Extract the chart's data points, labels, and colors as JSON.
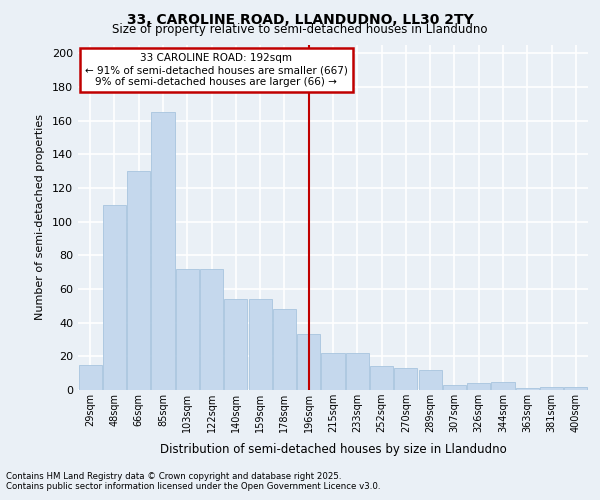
{
  "title1": "33, CAROLINE ROAD, LLANDUDNO, LL30 2TY",
  "title2": "Size of property relative to semi-detached houses in Llandudno",
  "xlabel": "Distribution of semi-detached houses by size in Llandudno",
  "ylabel": "Number of semi-detached properties",
  "categories": [
    "29sqm",
    "48sqm",
    "66sqm",
    "85sqm",
    "103sqm",
    "122sqm",
    "140sqm",
    "159sqm",
    "178sqm",
    "196sqm",
    "215sqm",
    "233sqm",
    "252sqm",
    "270sqm",
    "289sqm",
    "307sqm",
    "326sqm",
    "344sqm",
    "363sqm",
    "381sqm",
    "400sqm"
  ],
  "values": [
    15,
    110,
    130,
    165,
    72,
    72,
    54,
    54,
    48,
    33,
    22,
    22,
    14,
    13,
    12,
    3,
    4,
    5,
    1,
    2,
    2
  ],
  "bar_color": "#C5D8ED",
  "bar_edge_color": "#A8C4DF",
  "vline_x": 9,
  "vline_color": "#C00000",
  "annotation_title": "33 CAROLINE ROAD: 192sqm",
  "annotation_line1": "← 91% of semi-detached houses are smaller (667)",
  "annotation_line2": "9% of semi-detached houses are larger (66) →",
  "annotation_box_color": "#C00000",
  "ylim": [
    0,
    205
  ],
  "yticks": [
    0,
    20,
    40,
    60,
    80,
    100,
    120,
    140,
    160,
    180,
    200
  ],
  "footnote1": "Contains HM Land Registry data © Crown copyright and database right 2025.",
  "footnote2": "Contains public sector information licensed under the Open Government Licence v3.0.",
  "bg_color": "#EAF0F6",
  "grid_color": "#FFFFFF"
}
